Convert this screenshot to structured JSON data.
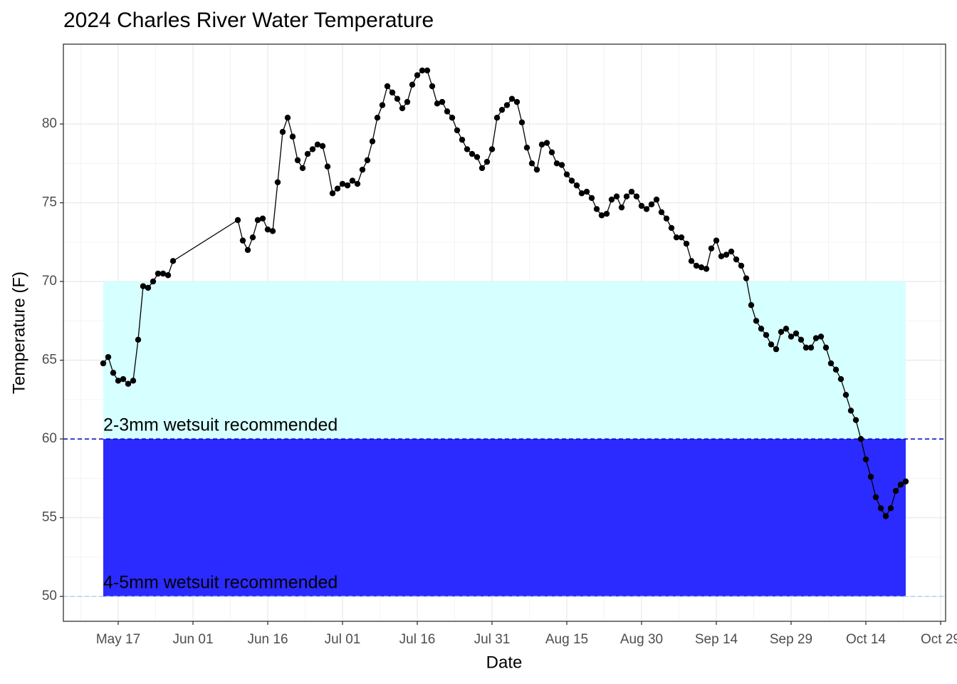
{
  "chart_data": {
    "type": "line",
    "title": "2024 Charles River Water Temperature",
    "x_label": "Date",
    "y_label": "Temperature (F)",
    "x": [
      "May 14",
      "May 15",
      "May 16",
      "May 17",
      "May 18",
      "May 19",
      "May 20",
      "May 21",
      "May 22",
      "May 23",
      "May 24",
      "May 25",
      "May 26",
      "May 27",
      "May 28",
      "Jun 10",
      "Jun 11",
      "Jun 12",
      "Jun 13",
      "Jun 14",
      "Jun 15",
      "Jun 16",
      "Jun 17",
      "Jun 18",
      "Jun 19",
      "Jun 20",
      "Jun 21",
      "Jun 22",
      "Jun 23",
      "Jun 24",
      "Jun 25",
      "Jun 26",
      "Jun 27",
      "Jun 28",
      "Jun 29",
      "Jun 30",
      "Jul 01",
      "Jul 02",
      "Jul 03",
      "Jul 04",
      "Jul 05",
      "Jul 06",
      "Jul 07",
      "Jul 08",
      "Jul 09",
      "Jul 10",
      "Jul 11",
      "Jul 12",
      "Jul 13",
      "Jul 14",
      "Jul 15",
      "Jul 16",
      "Jul 17",
      "Jul 18",
      "Jul 19",
      "Jul 20",
      "Jul 21",
      "Jul 22",
      "Jul 23",
      "Jul 24",
      "Jul 25",
      "Jul 26",
      "Jul 27",
      "Jul 28",
      "Jul 29",
      "Jul 30",
      "Jul 31",
      "Aug 01",
      "Aug 02",
      "Aug 03",
      "Aug 04",
      "Aug 05",
      "Aug 06",
      "Aug 07",
      "Aug 08",
      "Aug 09",
      "Aug 10",
      "Aug 11",
      "Aug 12",
      "Aug 13",
      "Aug 14",
      "Aug 15",
      "Aug 16",
      "Aug 17",
      "Aug 18",
      "Aug 19",
      "Aug 20",
      "Aug 21",
      "Aug 22",
      "Aug 23",
      "Aug 24",
      "Aug 25",
      "Aug 26",
      "Aug 27",
      "Aug 28",
      "Aug 29",
      "Aug 30",
      "Aug 31",
      "Sep 01",
      "Sep 02",
      "Sep 03",
      "Sep 04",
      "Sep 05",
      "Sep 06",
      "Sep 07",
      "Sep 08",
      "Sep 09",
      "Sep 10",
      "Sep 11",
      "Sep 12",
      "Sep 13",
      "Sep 14",
      "Sep 15",
      "Sep 16",
      "Sep 17",
      "Sep 18",
      "Sep 19",
      "Sep 20",
      "Sep 21",
      "Sep 22",
      "Sep 23",
      "Sep 24",
      "Sep 25",
      "Sep 26",
      "Sep 27",
      "Sep 28",
      "Sep 29",
      "Sep 30",
      "Oct 01",
      "Oct 02",
      "Oct 03",
      "Oct 04",
      "Oct 05",
      "Oct 06",
      "Oct 07",
      "Oct 08",
      "Oct 09",
      "Oct 10",
      "Oct 11",
      "Oct 12",
      "Oct 13",
      "Oct 14",
      "Oct 15",
      "Oct 16",
      "Oct 17",
      "Oct 18",
      "Oct 19",
      "Oct 20",
      "Oct 21",
      "Oct 22"
    ],
    "series": [
      {
        "color": "#000000",
        "values": [
          64.8,
          65.2,
          64.2,
          63.7,
          63.8,
          63.5,
          63.7,
          66.3,
          69.7,
          69.6,
          70.0,
          70.5,
          70.5,
          70.4,
          71.3,
          73.9,
          72.6,
          72.0,
          72.8,
          73.9,
          74.0,
          73.3,
          73.2,
          76.3,
          79.5,
          80.4,
          79.2,
          77.7,
          77.2,
          78.1,
          78.4,
          78.7,
          78.6,
          77.3,
          75.6,
          75.9,
          76.2,
          76.1,
          76.4,
          76.2,
          77.1,
          77.7,
          78.9,
          80.4,
          81.2,
          82.4,
          82.0,
          81.6,
          81.0,
          81.4,
          82.5,
          83.1,
          83.4,
          83.4,
          82.4,
          81.3,
          81.4,
          80.8,
          80.4,
          79.6,
          79.0,
          78.4,
          78.1,
          77.9,
          77.2,
          77.6,
          78.4,
          80.4,
          80.9,
          81.2,
          81.6,
          81.4,
          80.1,
          78.5,
          77.5,
          77.1,
          78.7,
          78.8,
          78.2,
          77.5,
          77.4,
          76.8,
          76.4,
          76.1,
          75.6,
          75.7,
          75.3,
          74.6,
          74.2,
          74.3,
          75.2,
          75.4,
          74.7,
          75.4,
          75.7,
          75.4,
          74.8,
          74.6,
          74.9,
          75.2,
          74.4,
          74.0,
          73.4,
          72.8,
          72.8,
          72.4,
          71.3,
          71.0,
          70.9,
          70.8,
          72.1,
          72.6,
          71.6,
          71.7,
          71.9,
          71.4,
          71.0,
          70.2,
          68.5,
          67.5,
          67.0,
          66.6,
          66.0,
          65.7,
          66.8,
          67.0,
          66.5,
          66.7,
          66.3,
          65.8,
          65.8,
          66.4,
          66.5,
          65.8,
          64.8,
          64.4,
          63.8,
          62.8,
          61.8,
          61.2,
          60.0,
          58.7,
          57.6,
          56.3,
          55.6,
          55.1,
          55.6,
          56.7,
          57.1,
          57.3
        ]
      }
    ],
    "xlim": [
      "May 06",
      "Oct 30"
    ],
    "xticks": [
      "May 17",
      "Jun 01",
      "Jun 16",
      "Jul 01",
      "Jul 16",
      "Jul 31",
      "Aug 15",
      "Aug 30",
      "Sep 14",
      "Sep 29",
      "Oct 14",
      "Oct 29"
    ],
    "ylim": [
      48.42,
      85.07
    ],
    "yticks": [
      50,
      55,
      60,
      65,
      70,
      75,
      80
    ],
    "grid": true,
    "bands": [
      {
        "from": 60,
        "to": 70,
        "color": "#d6ffff",
        "label": "2-3mm wetsuit recommended"
      },
      {
        "from": 50,
        "to": 60,
        "color": "#2b2bff",
        "label": "4-5mm wetsuit recommended"
      }
    ],
    "hlines": [
      {
        "value": 60,
        "color": "#0000cc"
      },
      {
        "value": 50,
        "color": "#add8e6"
      }
    ]
  }
}
